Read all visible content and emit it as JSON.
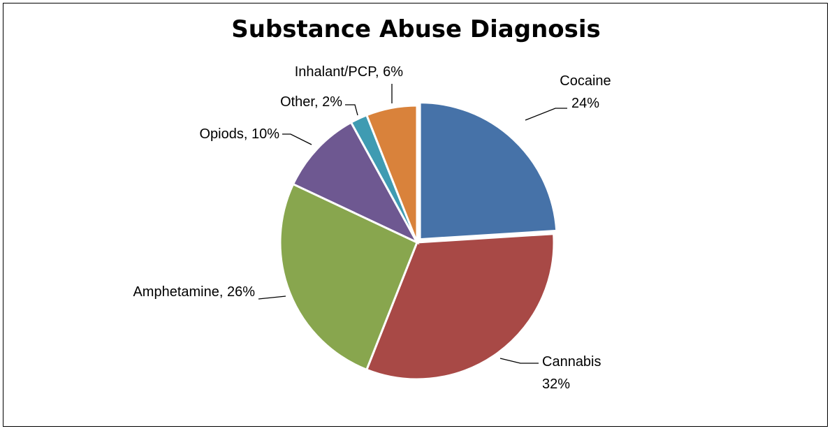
{
  "chart_data": {
    "type": "pie",
    "title": "Substance Abuse Diagnosis",
    "slices": [
      {
        "name": "Cocaine",
        "value": 24,
        "label_lines": [
          "Cocaine",
          "24%"
        ],
        "color": "#4672a8"
      },
      {
        "name": "Cannabis",
        "value": 32,
        "label_lines": [
          "Cannabis",
          "32%"
        ],
        "color": "#a84946"
      },
      {
        "name": "Amphetamine",
        "value": 26,
        "label_lines": [
          "Amphetamine, 26%"
        ],
        "color": "#88a64e"
      },
      {
        "name": "Opiods",
        "value": 10,
        "label_lines": [
          "Opiods, 10%"
        ],
        "color": "#6e5891"
      },
      {
        "name": "Other",
        "value": 2,
        "label_lines": [
          "Other, 2%"
        ],
        "color": "#3f9bb2"
      },
      {
        "name": "Inhalant/PCP",
        "value": 6,
        "label_lines": [
          "Inhalant/PCP, 6%"
        ],
        "color": "#d9823b"
      }
    ],
    "legend": "none"
  }
}
